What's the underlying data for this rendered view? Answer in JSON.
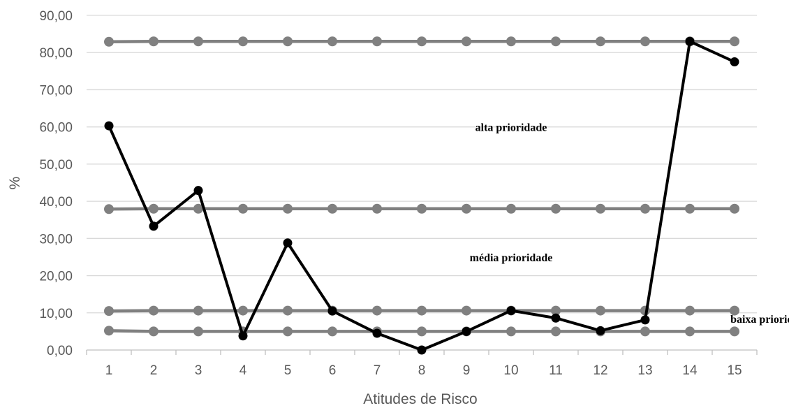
{
  "chart_data": {
    "type": "line",
    "title": "",
    "xlabel": "Atitudes de Risco",
    "ylabel": "%",
    "categories": [
      "1",
      "2",
      "3",
      "4",
      "5",
      "6",
      "7",
      "8",
      "9",
      "10",
      "11",
      "12",
      "13",
      "14",
      "15"
    ],
    "ylim": [
      0,
      90
    ],
    "yticks": [
      "0,00",
      "10,00",
      "20,00",
      "30,00",
      "40,00",
      "50,00",
      "60,00",
      "70,00",
      "80,00",
      "90,00"
    ],
    "grid": true,
    "legend": "none",
    "series": [
      {
        "color": "#808080",
        "values": [
          82.9,
          83.0,
          83.0,
          83.0,
          83.0,
          83.0,
          83.0,
          83.0,
          83.0,
          83.0,
          83.0,
          83.0,
          83.0,
          83.0,
          83.0
        ]
      },
      {
        "color": "#808080",
        "values": [
          37.9,
          38.0,
          38.0,
          38.0,
          38.0,
          38.0,
          38.0,
          38.0,
          38.0,
          38.0,
          38.0,
          38.0,
          38.0,
          38.0,
          38.0
        ]
      },
      {
        "color": "#808080",
        "values": [
          10.5,
          10.6,
          10.6,
          10.6,
          10.6,
          10.6,
          10.6,
          10.6,
          10.6,
          10.6,
          10.6,
          10.6,
          10.6,
          10.6,
          10.6
        ]
      },
      {
        "color": "#808080",
        "values": [
          5.2,
          5.0,
          5.0,
          5.0,
          5.0,
          5.0,
          5.0,
          5.0,
          5.0,
          5.0,
          5.0,
          5.0,
          5.0,
          5.0,
          5.0
        ]
      },
      {
        "color": "#000000",
        "values": [
          60.3,
          33.3,
          42.9,
          3.8,
          28.8,
          10.5,
          4.5,
          0.0,
          5.0,
          10.6,
          8.6,
          5.2,
          8.1,
          83.0,
          77.5
        ]
      }
    ],
    "annotations": [
      {
        "text": "alta prioridade",
        "x": 10,
        "y": 60
      },
      {
        "text": "média prioridade",
        "x": 10,
        "y": 25
      },
      {
        "text": "baixa prioridade",
        "x": 15.8,
        "y": 8.5
      }
    ]
  }
}
